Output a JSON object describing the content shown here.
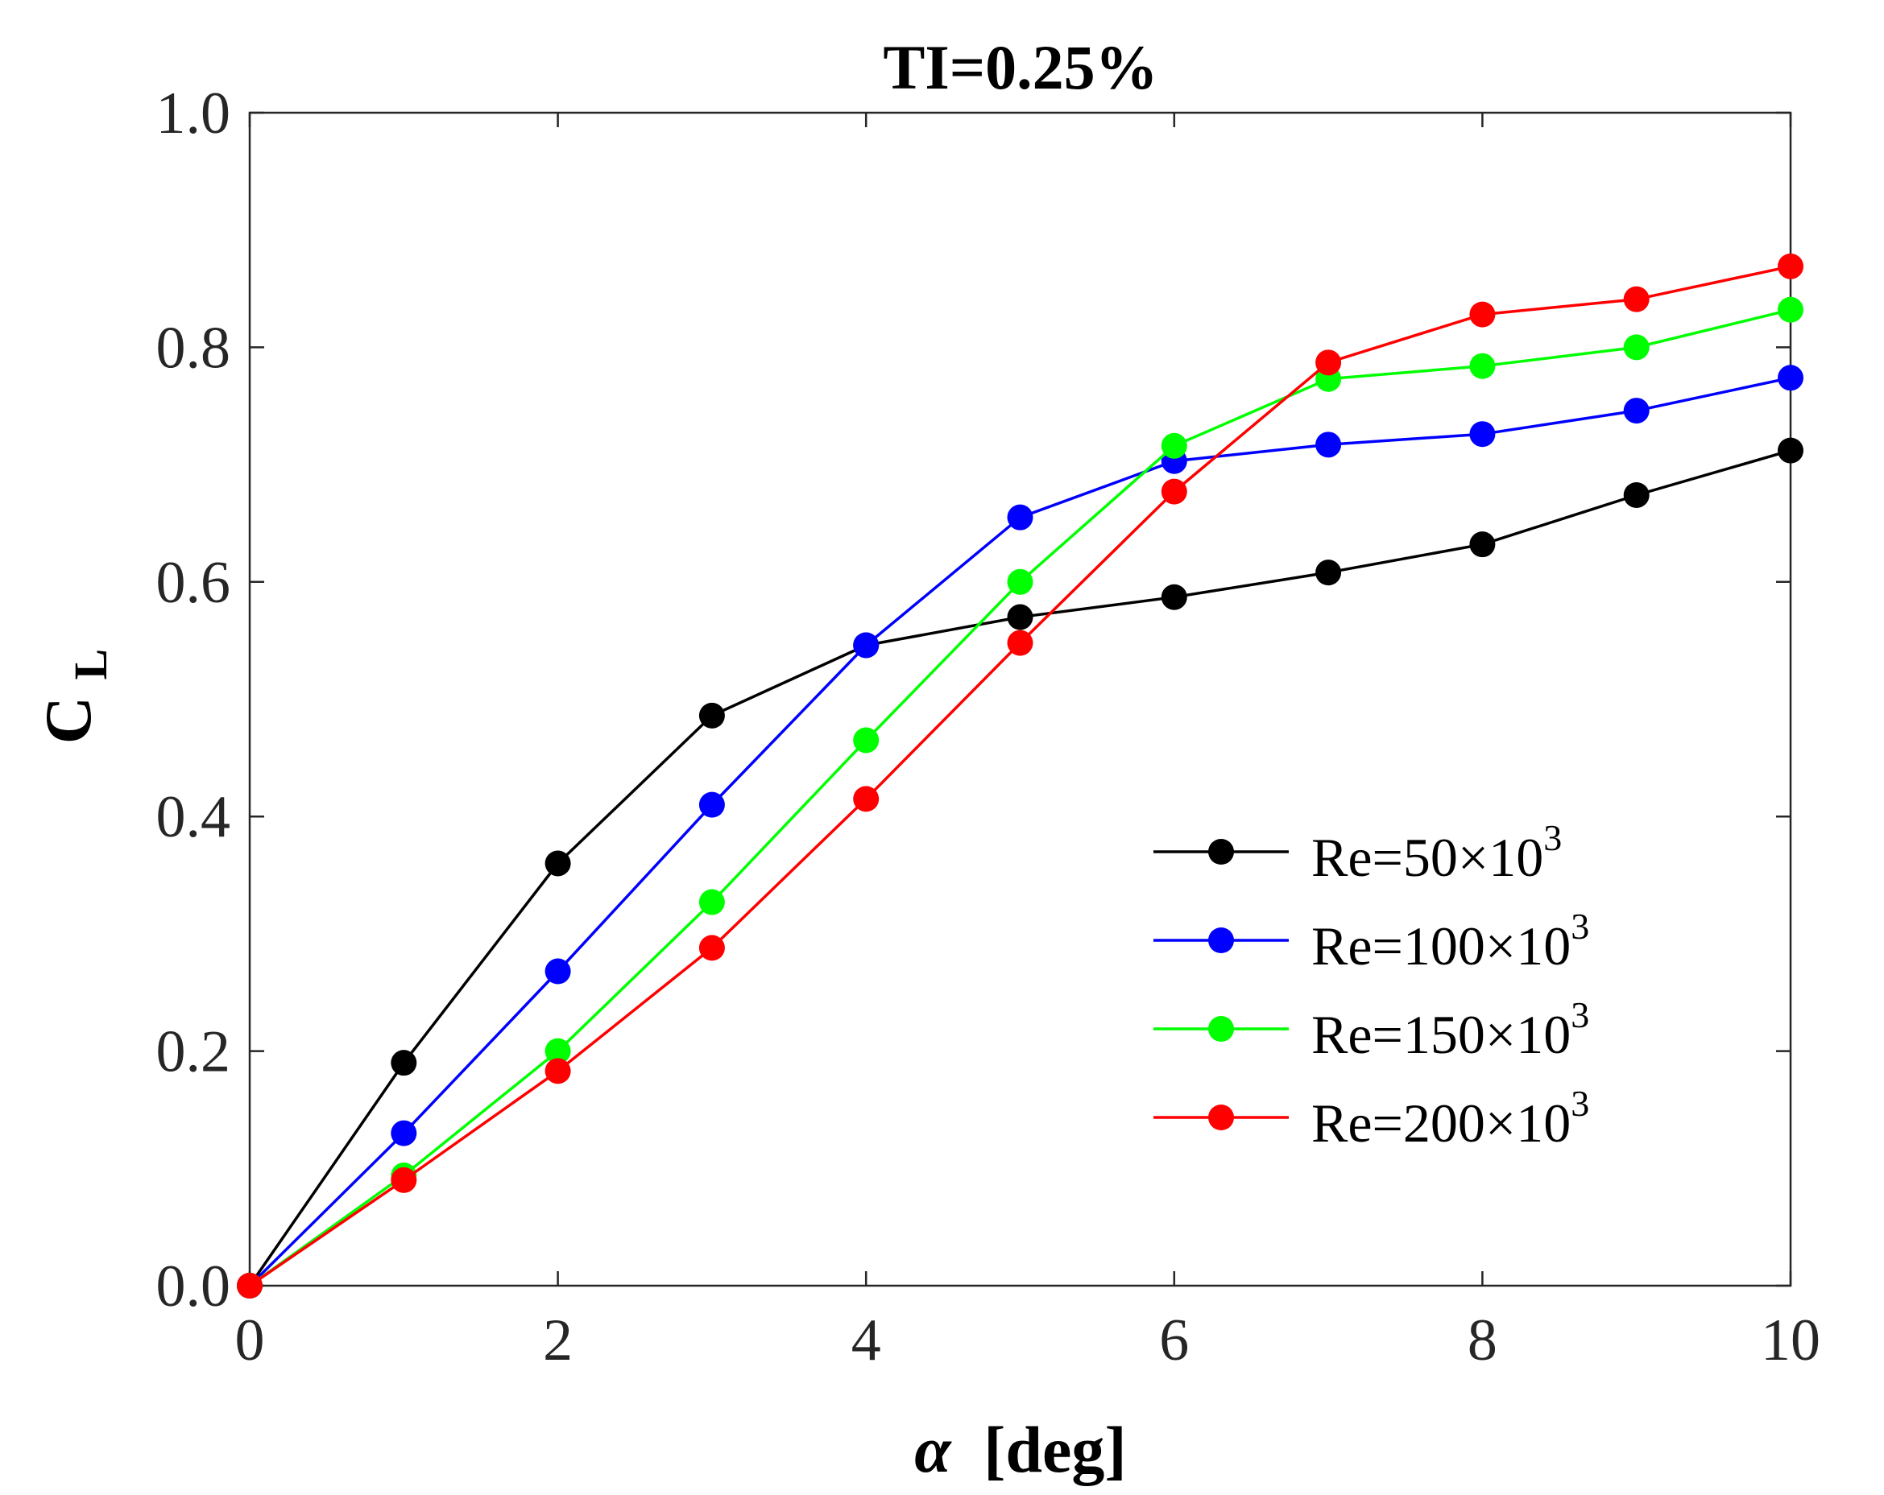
{
  "chart_data": {
    "type": "line",
    "title": "TI=0.25%",
    "xlabel": {
      "symbol": "α",
      "unit": "[deg]"
    },
    "ylabel": {
      "base": "C",
      "sub": "L"
    },
    "xlim": [
      0,
      10
    ],
    "ylim": [
      0,
      1
    ],
    "xticks": [
      0,
      2,
      4,
      6,
      8,
      10
    ],
    "xtick_labels": [
      "0",
      "2",
      "4",
      "6",
      "8",
      "10"
    ],
    "yticks": [
      0,
      0.2,
      0.4,
      0.6,
      0.8,
      1.0
    ],
    "ytick_labels": [
      "0.0",
      "0.2",
      "0.4",
      "0.6",
      "0.8",
      "1.0"
    ],
    "grid": false,
    "legend_position": "lower-right",
    "x": [
      0,
      1,
      2,
      3,
      4,
      5,
      6,
      7,
      8,
      9,
      10
    ],
    "series": [
      {
        "name": "Re=50×10",
        "name_sup": "3",
        "color": "#000000",
        "values": [
          0.0,
          0.19,
          0.36,
          0.486,
          0.546,
          0.57,
          0.587,
          0.608,
          0.632,
          0.674,
          0.712
        ]
      },
      {
        "name": "Re=100×10",
        "name_sup": "3",
        "color": "#0000ff",
        "values": [
          0.0,
          0.13,
          0.268,
          0.41,
          0.546,
          0.655,
          0.703,
          0.717,
          0.726,
          0.746,
          0.774
        ]
      },
      {
        "name": "Re=150×10",
        "name_sup": "3",
        "color": "#00ff00",
        "values": [
          0.0,
          0.094,
          0.2,
          0.327,
          0.465,
          0.6,
          0.716,
          0.773,
          0.784,
          0.8,
          0.832
        ]
      },
      {
        "name": "Re=200×10",
        "name_sup": "3",
        "color": "#ff0000",
        "values": [
          0.0,
          0.09,
          0.183,
          0.288,
          0.415,
          0.548,
          0.677,
          0.787,
          0.828,
          0.841,
          0.869
        ]
      }
    ]
  }
}
